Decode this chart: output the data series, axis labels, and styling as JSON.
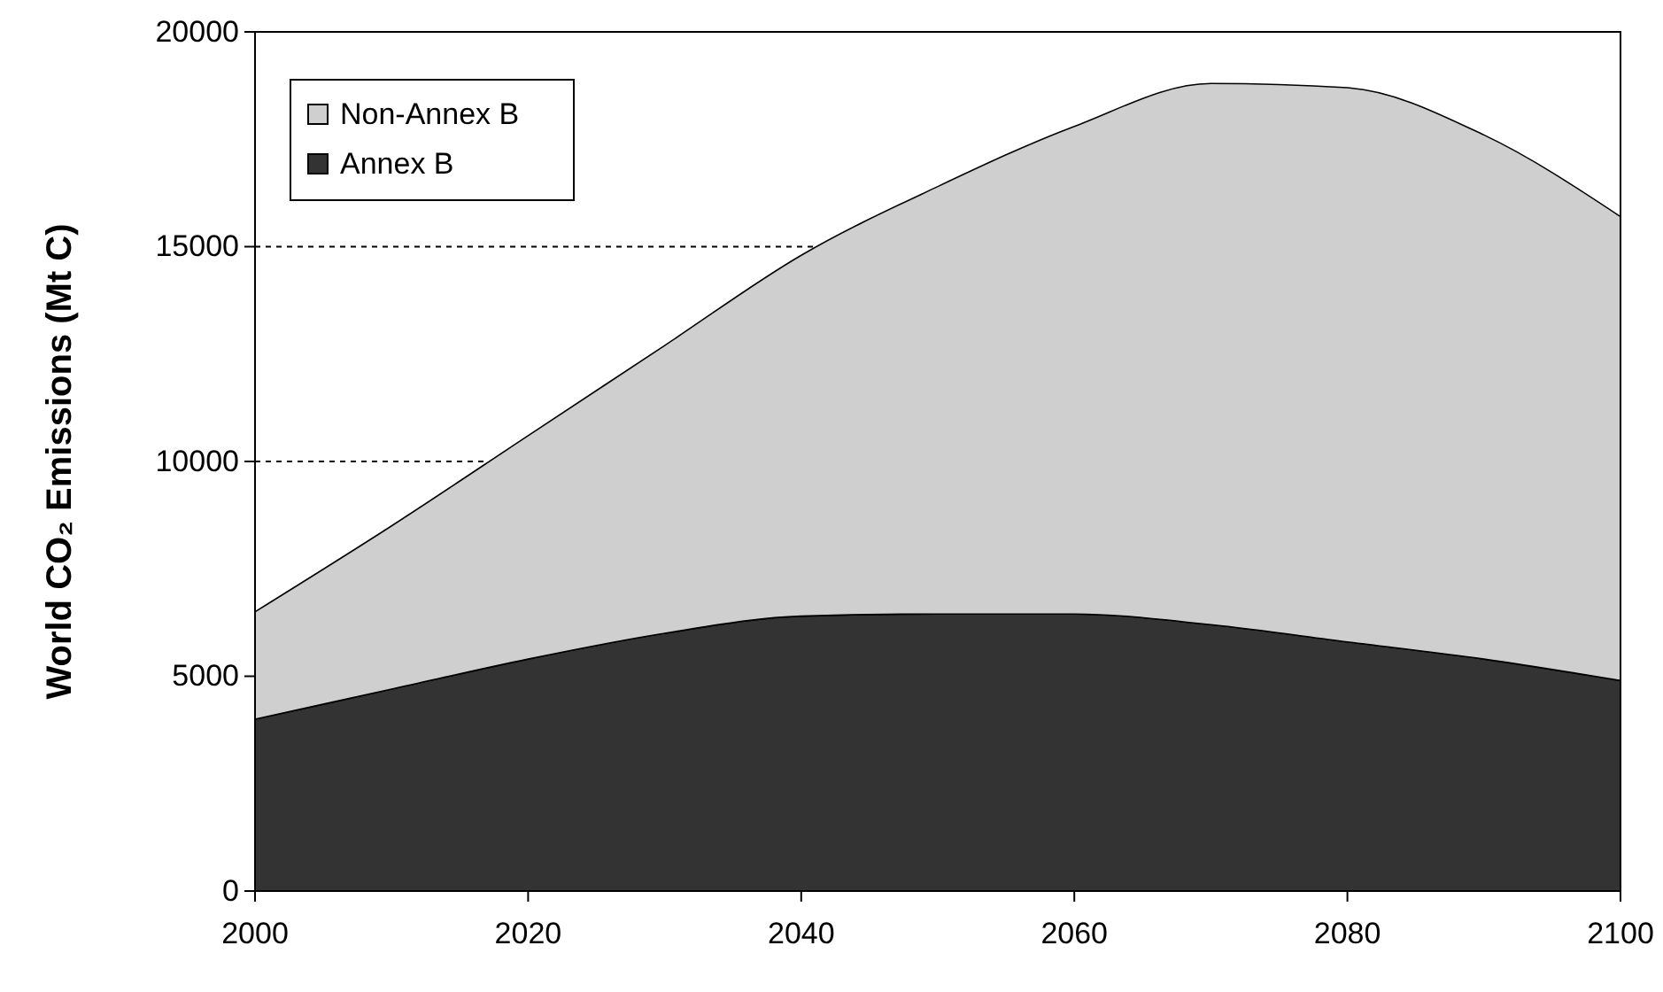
{
  "chart_data": {
    "type": "area",
    "stacked": true,
    "ylabel": "World CO₂ Emissions (Mt C)",
    "x": [
      2000,
      2010,
      2020,
      2030,
      2040,
      2050,
      2060,
      2070,
      2080,
      2090,
      2100
    ],
    "series": [
      {
        "name": "Annex B",
        "color": "#333333",
        "values": [
          4000,
          4700,
          5400,
          6000,
          6400,
          6450,
          6450,
          6200,
          5800,
          5400,
          4900
        ]
      },
      {
        "name": "Non-Annex B",
        "color": "#cfcfcf",
        "values": [
          2500,
          3800,
          5200,
          6700,
          8400,
          9950,
          11350,
          12600,
          12900,
          12200,
          10800
        ]
      }
    ],
    "xlim": [
      2000,
      2100
    ],
    "xticks": [
      2000,
      2020,
      2040,
      2060,
      2080,
      2100
    ],
    "ylim": [
      0,
      20000
    ],
    "yticks": [
      0,
      5000,
      10000,
      15000,
      20000
    ],
    "grid": "y",
    "legend": "top left"
  }
}
